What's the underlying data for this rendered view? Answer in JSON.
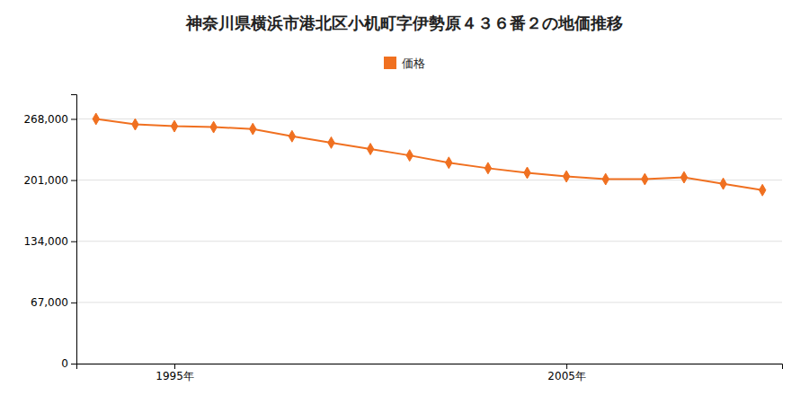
{
  "chart_data": {
    "type": "line",
    "title": "神奈川県横浜市港北区小机町字伊勢原４３６番２の地価推移",
    "x": [
      1993,
      1994,
      1995,
      1996,
      1997,
      1998,
      1999,
      2000,
      2001,
      2002,
      2003,
      2004,
      2005,
      2006,
      2007,
      2008,
      2009,
      2010
    ],
    "series": [
      {
        "name": "価格",
        "color": "#f07020",
        "marker": "diamond",
        "line_style": "solid",
        "values": [
          268000,
          262000,
          260000,
          259000,
          257000,
          249000,
          242000,
          235000,
          228000,
          220000,
          214000,
          209000,
          205000,
          202000,
          202000,
          204000,
          197000,
          190000
        ]
      }
    ],
    "xlim": [
      1992.5,
      2010.5
    ],
    "xticks": [
      {
        "value": 1995,
        "label": "1995年"
      },
      {
        "value": 2005,
        "label": "2005年"
      }
    ],
    "ylim": [
      0,
      295000
    ],
    "yticks": [
      0,
      {
        "value": 67000,
        "label": "67,000"
      },
      {
        "value": 134000,
        "label": "134,000"
      },
      {
        "value": 201000,
        "label": "201,000"
      },
      {
        "value": 268000,
        "label": "268,000"
      }
    ],
    "grid": true,
    "legend": "top"
  }
}
